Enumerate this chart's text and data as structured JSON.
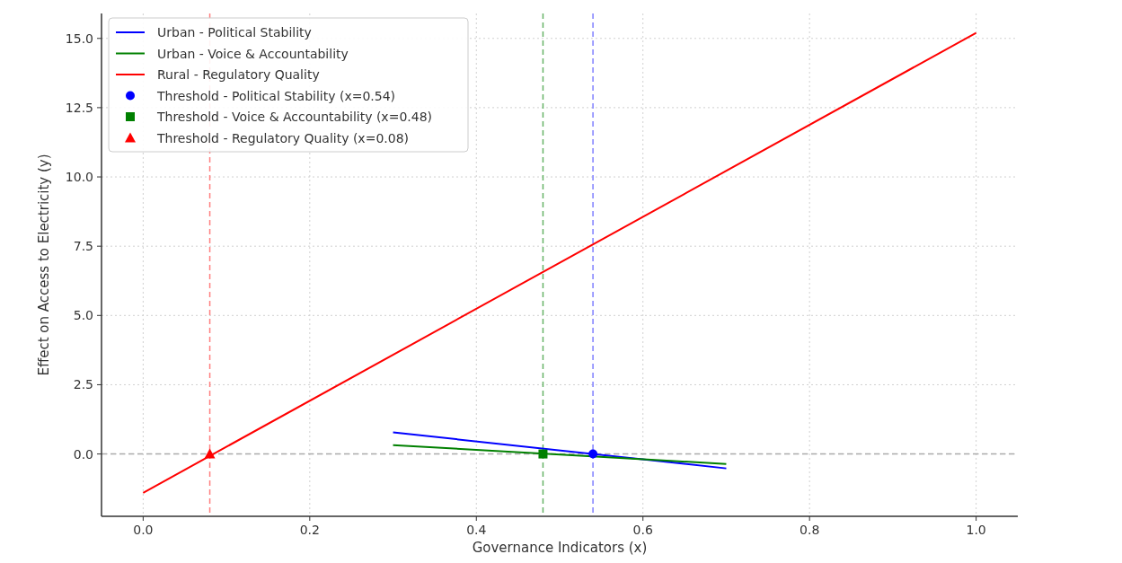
{
  "chart_data": {
    "type": "line",
    "xlabel": "Governance Indicators (x)",
    "ylabel": "Effect on Access to Electricity (y)",
    "xlim": [
      -0.05,
      1.05
    ],
    "xticks": [
      {
        "value": 0,
        "label": "0.0"
      },
      0.2,
      0.4,
      0.6,
      0.8,
      {
        "value": 1,
        "label": "1.0"
      }
    ],
    "ylim": [
      -2.25,
      15.9
    ],
    "yticks": [
      {
        "value": 0,
        "label": "0.0"
      },
      2.5,
      {
        "value": 5,
        "label": "5.0"
      },
      7.5,
      {
        "value": 10,
        "label": "10.0"
      },
      12.5,
      {
        "value": 15,
        "label": "15.0"
      }
    ],
    "grid": true,
    "legend": "top left",
    "series": [
      {
        "name": "Urban - Political Stability",
        "type": "line",
        "color": "#0000ff",
        "x": [
          0.3,
          0.7
        ],
        "values": [
          0.78,
          -0.52
        ]
      },
      {
        "name": "Urban - Voice & Accountability",
        "type": "line",
        "color": "#008000",
        "x": [
          0.3,
          0.7
        ],
        "values": [
          0.32,
          -0.36
        ]
      },
      {
        "name": "Rural - Regulatory Quality",
        "type": "line",
        "color": "#ff0000",
        "x": [
          0,
          1
        ],
        "values": [
          -1.4,
          15.2
        ]
      },
      {
        "name": "Threshold - Political Stability (x=0.54)",
        "type": "scatter",
        "marker": "circle",
        "color": "#0000ff",
        "x": [
          0.54
        ],
        "values": [
          0
        ]
      },
      {
        "name": "Threshold - Voice & Accountability (x=0.48)",
        "type": "scatter",
        "marker": "square",
        "color": "#008000",
        "x": [
          0.48
        ],
        "values": [
          0
        ]
      },
      {
        "name": "Threshold - Regulatory Quality (x=0.08)",
        "type": "scatter",
        "marker": "triangle",
        "color": "#ff0000",
        "x": [
          0.08
        ],
        "values": [
          0
        ]
      }
    ],
    "ref_lines": [
      {
        "axis": "x",
        "value": 0.54,
        "color": "#8080ff",
        "line_style": "dashed"
      },
      {
        "axis": "x",
        "value": 0.48,
        "color": "#66b366",
        "line_style": "dashed"
      },
      {
        "axis": "x",
        "value": 0.08,
        "color": "#ff7f7f",
        "line_style": "dashed"
      },
      {
        "axis": "y",
        "value": 0,
        "color": "#aaaaaa",
        "line_style": "dashed"
      }
    ]
  }
}
